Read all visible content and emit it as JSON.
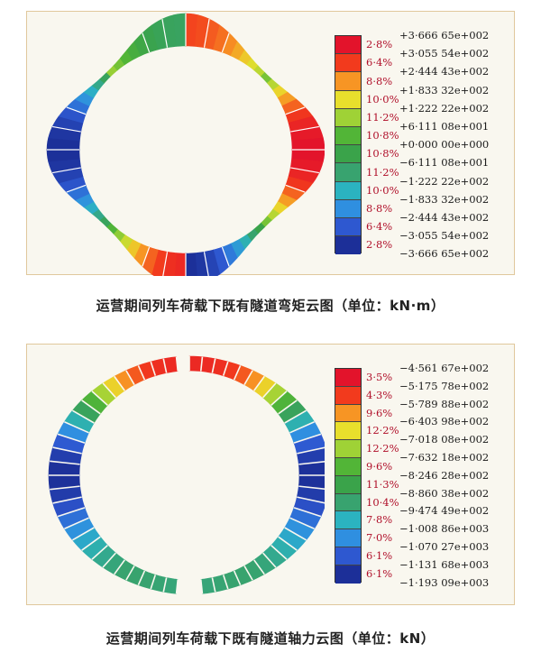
{
  "figure1": {
    "legend_pcts": [
      "2·8%",
      "6·4%",
      "8·8%",
      "10·0%",
      "11·2%",
      "10·8%",
      "10·8%",
      "11·2%",
      "10·0%",
      "8·8%",
      "6·4%",
      "2·8%"
    ],
    "legend_values": [
      "+3·666 65e+002",
      "+3·055 54e+002",
      "+2·444 43e+002",
      "+1·833 32e+002",
      "+1·222 22e+002",
      "+6·111 08e+001",
      "+0·000 00e+000",
      "−6·111 08e+001",
      "−1·222 22e+002",
      "−1·833 32e+002",
      "−2·444 43e+002",
      "−3·055 54e+002",
      "−3·666 65e+002"
    ],
    "legend_colors": [
      "#e3132b",
      "#f23a1d",
      "#f79524",
      "#e8df2c",
      "#9fd236",
      "#52b537",
      "#3aa34a",
      "#38a36f",
      "#2bb3c0",
      "#2f8fe0",
      "#2e58d0",
      "#1c2f98"
    ],
    "caption": "运营期间列车荷载下既有隧道弯矩云图（单位：kN·m）"
  },
  "figure2": {
    "legend_pcts": [
      "3·5%",
      "4·3%",
      "9·6%",
      "12·2%",
      "12·2%",
      "9·6%",
      "11·3%",
      "10·4%",
      "7·8%",
      "7·0%",
      "6·1%",
      "6·1%"
    ],
    "legend_values": [
      "−4·561 67e+002",
      "−5·175 78e+002",
      "−5·789 88e+002",
      "−6·403 98e+002",
      "−7·018 08e+002",
      "−7·632 18e+002",
      "−8·246 28e+002",
      "−8·860 38e+002",
      "−9·474 49e+002",
      "−1·008 86e+003",
      "−1·070 27e+003",
      "−1·131 68e+003",
      "−1·193 09e+003"
    ],
    "legend_colors": [
      "#e3132b",
      "#f23a1d",
      "#f79524",
      "#e8df2c",
      "#9fd236",
      "#52b537",
      "#3aa34a",
      "#38a36f",
      "#2bb3c0",
      "#2f8fe0",
      "#2e58d0",
      "#1c2f98"
    ],
    "caption": "运营期间列车荷载下既有隧道轴力云图（单位：kN）"
  }
}
